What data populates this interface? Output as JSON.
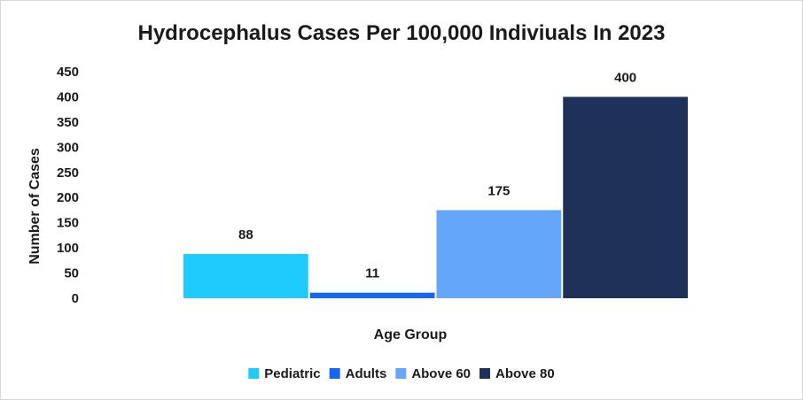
{
  "chart_data": {
    "type": "bar",
    "title": "Hydrocephalus Cases Per 100,000 Indiviuals In 2023",
    "xlabel": "Age Group",
    "ylabel": "Number of Cases",
    "ylim": [
      0,
      450
    ],
    "yticks": [
      "0",
      "50",
      "100",
      "150",
      "200",
      "250",
      "300",
      "350",
      "400",
      "450"
    ],
    "grid": false,
    "legend_position": "bottom",
    "categories": [
      "Pediatric",
      "Adults",
      "Above 60",
      "Above 80"
    ],
    "values": [
      88,
      11,
      175,
      400
    ],
    "data_labels": [
      "88",
      "11",
      "175",
      "400"
    ],
    "colors": [
      "#1ecbfc",
      "#1367f4",
      "#64a7fa",
      "#1e3159"
    ]
  }
}
